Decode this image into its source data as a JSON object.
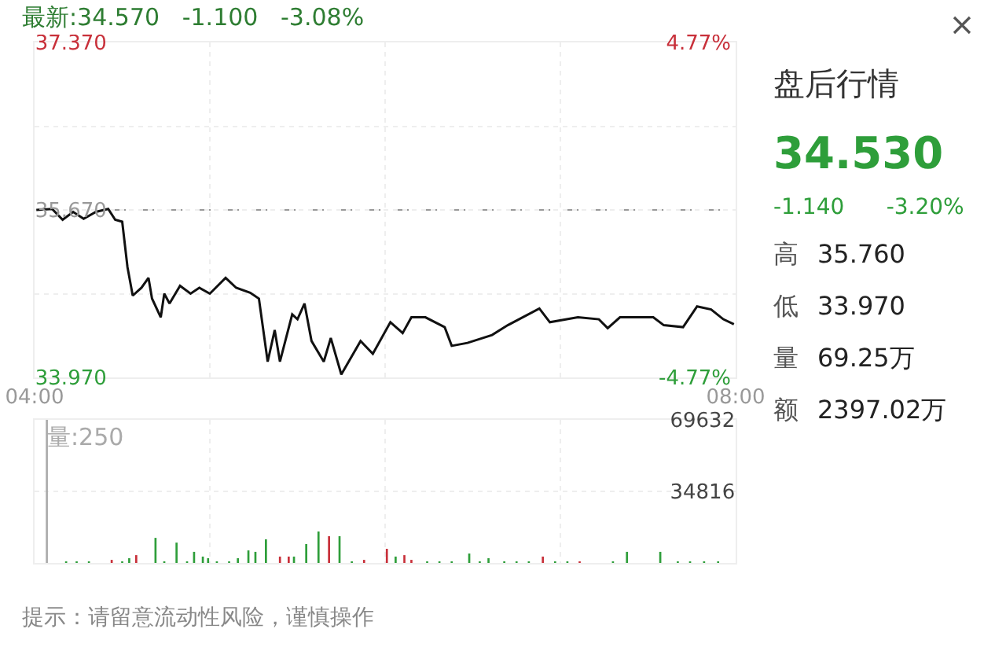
{
  "chart_data": [
    {
      "type": "line",
      "title": "最新:34.570   -1.100   -3.08%",
      "annotations": [
        "量:250",
        "提示：请留意流动性风险，谨慎操作"
      ],
      "x": [
        4.01,
        4.1,
        4.16,
        4.22,
        4.28,
        4.35,
        4.42,
        4.46,
        4.5,
        4.53,
        4.56,
        4.61,
        4.65,
        4.67,
        4.72,
        4.74,
        4.77,
        4.83,
        4.89,
        4.94,
        5.0,
        5.09,
        5.15,
        5.23,
        5.28,
        5.33,
        5.37,
        5.4,
        5.47,
        5.5,
        5.54,
        5.58,
        5.65,
        5.69,
        5.75,
        5.86,
        5.93,
        6.03,
        6.1,
        6.15,
        6.23,
        6.34,
        6.38,
        6.47,
        6.61,
        6.7,
        6.88,
        6.94,
        7.1,
        7.22,
        7.27,
        7.34,
        7.53,
        7.59,
        7.7,
        7.78,
        7.86,
        7.93,
        7.99
      ],
      "series": [
        {
          "color": "#111111",
          "values": [
            35.67,
            35.68,
            35.57,
            35.65,
            35.58,
            35.65,
            35.68,
            35.57,
            35.55,
            35.09,
            34.8,
            34.88,
            34.98,
            34.77,
            34.58,
            34.82,
            34.72,
            34.9,
            34.82,
            34.88,
            34.82,
            34.98,
            34.88,
            34.83,
            34.77,
            34.13,
            34.45,
            34.13,
            34.61,
            34.56,
            34.72,
            34.34,
            34.13,
            34.37,
            34.0,
            34.34,
            34.21,
            34.53,
            34.42,
            34.58,
            34.58,
            34.48,
            34.29,
            34.32,
            34.4,
            34.5,
            34.67,
            34.53,
            34.58,
            34.56,
            34.47,
            34.58,
            34.58,
            34.5,
            34.48,
            34.69,
            34.66,
            34.56,
            34.51
          ]
        },
        {
          "type": "bar",
          "axis": "y3",
          "x": [
            4.07,
            4.18,
            4.24,
            4.31,
            4.44,
            4.5,
            4.54,
            4.58,
            4.69,
            4.74,
            4.81,
            4.87,
            4.91,
            4.96,
            4.99,
            5.04,
            5.11,
            5.16,
            5.22,
            5.26,
            5.32,
            5.4,
            5.45,
            5.48,
            5.55,
            5.62,
            5.68,
            5.74,
            5.81,
            5.88,
            6.01,
            6.06,
            6.11,
            6.15,
            6.24,
            6.31,
            6.38,
            6.48,
            6.54,
            6.59,
            6.68,
            6.75,
            6.82,
            6.9,
            6.97,
            7.04,
            7.11,
            7.3,
            7.38,
            7.57,
            7.67,
            7.74,
            7.82,
            7.9
          ],
          "values": [
            69632,
            800,
            800,
            800,
            1500,
            800,
            2300,
            3800,
            12200,
            800,
            9900,
            800,
            5400,
            3100,
            2300,
            800,
            800,
            2300,
            6100,
            5400,
            11500,
            3100,
            3100,
            3100,
            9200,
            15300,
            13000,
            13000,
            800,
            1500,
            6900,
            3100,
            3800,
            1500,
            800,
            800,
            800,
            4600,
            800,
            2300,
            800,
            800,
            800,
            3100,
            800,
            800,
            800,
            800,
            5400,
            5400,
            800,
            800,
            800,
            800
          ],
          "colors": [
            "#aaaaaa",
            "#2e9e3a",
            "#2e9e3a",
            "#2e9e3a",
            "#c8303a",
            "#2e9e3a",
            "#2e9e3a",
            "#c8303a",
            "#2e9e3a",
            "#2e9e3a",
            "#2e9e3a",
            "#2e9e3a",
            "#2e9e3a",
            "#2e9e3a",
            "#2e9e3a",
            "#2e9e3a",
            "#2e9e3a",
            "#2e9e3a",
            "#2e9e3a",
            "#2e9e3a",
            "#2e9e3a",
            "#c8303a",
            "#c8303a",
            "#2e9e3a",
            "#2e9e3a",
            "#2e9e3a",
            "#c8303a",
            "#2e9e3a",
            "#2e9e3a",
            "#c8303a",
            "#c8303a",
            "#2e9e3a",
            "#c8303a",
            "#c8303a",
            "#2e9e3a",
            "#2e9e3a",
            "#2e9e3a",
            "#2e9e3a",
            "#2e9e3a",
            "#2e9e3a",
            "#2e9e3a",
            "#2e9e3a",
            "#2e9e3a",
            "#c8303a",
            "#2e9e3a",
            "#2e9e3a",
            "#c8303a",
            "#2e9e3a",
            "#2e9e3a",
            "#2e9e3a",
            "#2e9e3a",
            "#2e9e3a",
            "#2e9e3a",
            "#2e9e3a"
          ]
        }
      ],
      "xlim": [
        4,
        8
      ],
      "xticks": [
        {
          "value": 4,
          "label": "04:00"
        },
        {
          "value": 5,
          "label": null
        },
        {
          "value": 6,
          "label": null
        },
        {
          "value": 7,
          "label": null
        },
        {
          "value": 8,
          "label": "08:00"
        }
      ],
      "ylim": [
        33.97,
        37.37
      ],
      "yticks": [
        {
          "value": 33.97,
          "label": "33.970"
        },
        {
          "value": 34.82,
          "label": null
        },
        {
          "value": 35.67,
          "label": "35.670"
        },
        {
          "value": 36.52,
          "label": null
        },
        {
          "value": 37.37,
          "label": "37.370"
        }
      ],
      "y2lim": [
        -4.77,
        4.77
      ],
      "y2ticks": [
        {
          "value": -4.77,
          "label": "-4.77%"
        },
        {
          "value": 4.77,
          "label": "4.77%"
        }
      ],
      "y3lim": [
        0,
        69632
      ],
      "y3ticks": [
        34816,
        69632
      ],
      "ref_lines": [
        {
          "axis": "y",
          "value": 35.67,
          "color": "#999999",
          "line_style": "dashed"
        }
      ],
      "grid": true,
      "legend": false,
      "marker": "none",
      "line_style": "solid"
    },
    {
      "type": "other",
      "title": "盘后行情",
      "annotations": [
        "34.530",
        "-1.140",
        "-3.20%",
        "高",
        "35.760",
        "低",
        "33.970",
        "量",
        "69.25万",
        "额",
        "2397.02万"
      ]
    }
  ]
}
